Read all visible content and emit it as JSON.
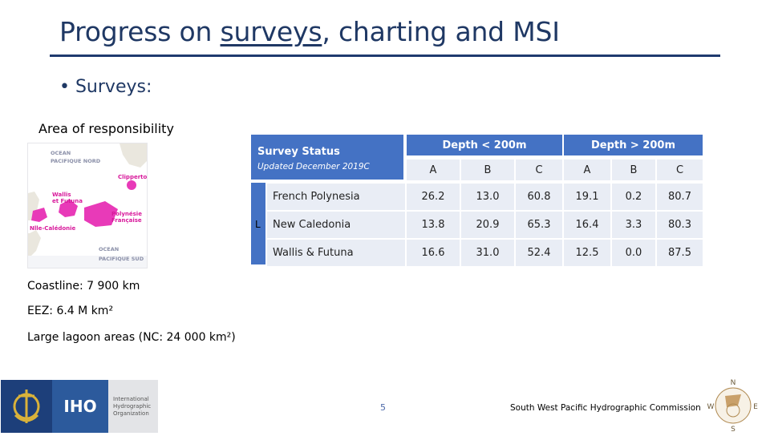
{
  "title": {
    "before": "Progress on ",
    "underlined": "surveys",
    "after": ", charting and MSI"
  },
  "bullet": "• Surveys:",
  "area_label": "Area of responsibility",
  "map": {
    "labels": [
      "OCEAN",
      "PACIFIQUE NORD",
      "Clipperton",
      "Wallis",
      "et Futuna",
      "Polynésie",
      "Française",
      "Nlle-Calédonie",
      "OCEAN",
      "PACIFIQUE SUD"
    ]
  },
  "status": {
    "title": "Survey Status",
    "subtitle": "Updated December 2019C",
    "side_letter": "L"
  },
  "table": {
    "groups": [
      "Depth < 200m",
      "Depth > 200m"
    ],
    "columns": [
      "A",
      "B",
      "C",
      "A",
      "B",
      "C"
    ],
    "rows": [
      {
        "name": "French Polynesia",
        "values": [
          "26.2",
          "13.0",
          "60.8",
          "19.1",
          "0.2",
          "80.7"
        ]
      },
      {
        "name": "New Caledonia",
        "values": [
          "13.8",
          "20.9",
          "65.3",
          "16.4",
          "3.3",
          "80.3"
        ]
      },
      {
        "name": "Wallis & Futuna",
        "values": [
          "16.6",
          "31.0",
          "52.4",
          "12.5",
          "0.0",
          "87.5"
        ]
      }
    ]
  },
  "info": {
    "coastline": "Coastline: 7 900 km",
    "eez": "EEZ: 6.4 M km²",
    "lagoon": "Large lagoon areas (NC: 24 000 km²)"
  },
  "footer": {
    "iho_abbr": "IHO",
    "iho_name": [
      "International",
      "Hydrographic",
      "Organization"
    ],
    "page_number": "5",
    "commission": "South West Pacific Hydrographic Commission",
    "compass_letters": [
      "N",
      "W",
      "E",
      "S"
    ]
  },
  "colors": {
    "title": "#1f3864",
    "header_fill": "#4472c4",
    "row_fill": "#e9edf5",
    "map_pink": "#e83ab8"
  }
}
